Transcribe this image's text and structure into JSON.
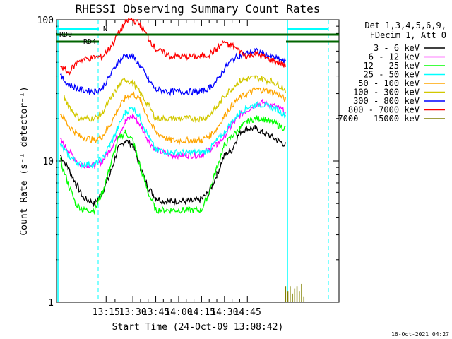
{
  "chart_data": {
    "type": "line",
    "title": "RHESSI Observing Summary Count Rates",
    "xlabel": "Start Time (24-Oct-09 13:08:42)",
    "ylabel": "Count Rate (s⁻¹ detector⁻¹)",
    "yscale": "log",
    "ylim": [
      1,
      100
    ],
    "xlim_minutes": [
      3.0,
      40.0
    ],
    "x_ticks": [
      {
        "t": 9.5,
        "label": "13:15"
      },
      {
        "t": 13.0,
        "label": "13:30"
      },
      {
        "t": 16.0,
        "label": "13:45"
      },
      {
        "t": 19.0,
        "label": "14:00"
      },
      {
        "t": 22.0,
        "label": "14:15"
      },
      {
        "t": 25.0,
        "label": "14:30"
      },
      {
        "t": 28.0,
        "label": "14:45"
      }
    ],
    "y_ticks": [
      {
        "v": 1,
        "label": "1"
      },
      {
        "v": 10,
        "label": "10"
      },
      {
        "v": 100,
        "label": "100"
      }
    ],
    "legend": {
      "placement": "right",
      "header": [
        "Det 1,3,4,5,6,9,",
        "FDecim 1, Att 0"
      ]
    },
    "series": [
      {
        "name": "3 - 6 keV",
        "color": "#000000",
        "x": [
          3.5,
          4.5,
          5.5,
          6.5,
          8,
          9,
          10,
          11,
          12,
          13,
          14,
          15,
          16,
          17,
          18,
          19,
          20,
          21,
          22,
          23,
          24,
          25,
          26,
          26.5,
          27,
          28,
          29,
          30,
          31,
          32,
          33
        ],
        "y": [
          11,
          9,
          7,
          5.5,
          5,
          6,
          8,
          12,
          14,
          13,
          9,
          6.5,
          5.5,
          5.2,
          5.2,
          5.2,
          5.2,
          5.2,
          5.4,
          6,
          8,
          11,
          12,
          14,
          16,
          17,
          17,
          16,
          15,
          14,
          13
        ]
      },
      {
        "name": "6 - 12 keV",
        "color": "#ff00ff",
        "x": [
          3.5,
          4.5,
          6,
          8,
          9,
          10,
          11,
          12,
          13,
          14,
          15,
          16,
          18,
          20,
          22,
          23,
          24,
          25,
          26,
          27,
          28,
          29,
          30,
          31,
          32,
          33
        ],
        "y": [
          14,
          12,
          9.5,
          9.3,
          10,
          12,
          15,
          19,
          21,
          18,
          14,
          12,
          11,
          11,
          11,
          12,
          13,
          15,
          18,
          21,
          23,
          25,
          26,
          25,
          24,
          22
        ]
      },
      {
        "name": "12 - 25 keV",
        "color": "#00ff00",
        "x": [
          3.5,
          4.5,
          5.5,
          6.5,
          8,
          9,
          10,
          11,
          12,
          13,
          14,
          15,
          16,
          18,
          20,
          22,
          23,
          24,
          25,
          26,
          27,
          28,
          29,
          30,
          31,
          32,
          33
        ],
        "y": [
          10,
          7,
          5,
          4.5,
          4.5,
          6,
          9,
          14,
          16,
          14,
          9,
          6,
          4.5,
          4.5,
          4.5,
          4.5,
          6,
          9,
          13,
          15,
          17,
          19,
          20,
          20,
          19,
          18,
          17
        ]
      },
      {
        "name": "25 - 50 keV",
        "color": "#00ffff",
        "x": [
          3.5,
          4.5,
          6,
          8,
          9,
          10,
          11,
          12,
          13,
          14,
          15,
          16,
          18,
          20,
          22,
          23,
          24,
          25,
          26,
          27,
          28,
          29,
          30,
          31,
          32,
          33
        ],
        "y": [
          13,
          11,
          9.5,
          9.5,
          10.5,
          13,
          17,
          22,
          24,
          20,
          15,
          12,
          11.5,
          11.5,
          11.5,
          12,
          14,
          16,
          19,
          22,
          24,
          25,
          25,
          24,
          23,
          21
        ]
      },
      {
        "name": "50 - 100 keV",
        "color": "#ffa500",
        "x": [
          3.5,
          4.5,
          6,
          8,
          9,
          10,
          11,
          12,
          13,
          14,
          15,
          16,
          18,
          20,
          22,
          23,
          24,
          25,
          26,
          27,
          28,
          29,
          30,
          31,
          32,
          33
        ],
        "y": [
          22,
          18,
          15,
          14,
          15,
          18,
          23,
          28,
          30,
          27,
          20,
          16,
          14,
          14,
          14,
          15,
          17,
          21,
          25,
          28,
          30,
          32,
          32,
          31,
          30,
          27
        ]
      },
      {
        "name": "100 - 300 keV",
        "color": "#d2c800",
        "x": [
          4,
          5,
          6,
          8,
          9,
          10,
          11,
          12,
          13,
          14,
          15,
          16,
          18,
          20,
          22,
          23,
          24,
          25,
          26,
          27,
          28,
          29,
          30,
          31,
          32,
          33
        ],
        "y": [
          28,
          23,
          20,
          20,
          22,
          27,
          33,
          38,
          36,
          30,
          25,
          20,
          20,
          20,
          20,
          21,
          24,
          29,
          33,
          37,
          38,
          39,
          38,
          37,
          35,
          32
        ]
      },
      {
        "name": "300 - 800 keV",
        "color": "#0000ff",
        "x": [
          3.5,
          4.5,
          6,
          8,
          9,
          10,
          11,
          12,
          13,
          14,
          15,
          16,
          18,
          20,
          22,
          23,
          24,
          25,
          26,
          27,
          28,
          29,
          30,
          31,
          32,
          33
        ],
        "y": [
          40,
          35,
          32,
          31,
          33,
          40,
          50,
          56,
          55,
          47,
          38,
          32,
          31,
          31,
          31,
          33,
          37,
          45,
          52,
          56,
          58,
          60,
          58,
          55,
          53,
          50
        ]
      },
      {
        "name": "800 - 7000 keV",
        "color": "#ff0000",
        "x": [
          3.5,
          4.5,
          6,
          8,
          9,
          10,
          11,
          12,
          12.5,
          13,
          14,
          15,
          16,
          18,
          20,
          22,
          23,
          24,
          25,
          25.5,
          26,
          27,
          28,
          29,
          30,
          31,
          32,
          33
        ],
        "y": [
          48,
          42,
          52,
          54,
          55,
          63,
          78,
          95,
          100,
          100,
          92,
          75,
          62,
          55,
          55,
          55,
          57,
          62,
          70,
          65,
          66,
          60,
          55,
          58,
          55,
          52,
          50,
          47
        ]
      },
      {
        "name": "7000 - 15000 keV",
        "color": "#808000",
        "x": [
          33,
          33.3,
          33.6,
          33.9,
          34.2,
          34.5,
          34.8,
          35.1,
          35.4
        ],
        "y": [
          1.3,
          1.2,
          1.3,
          1.15,
          1.25,
          1.3,
          1.2,
          1.35,
          1.1
        ]
      }
    ],
    "annotations": [
      {
        "label": "RD0",
        "color": "#006400"
      },
      {
        "label": "RD4",
        "color": "#006400"
      },
      {
        "label": "N",
        "color": "#00ffff"
      }
    ],
    "footer": "16-Oct-2021 04:27"
  }
}
